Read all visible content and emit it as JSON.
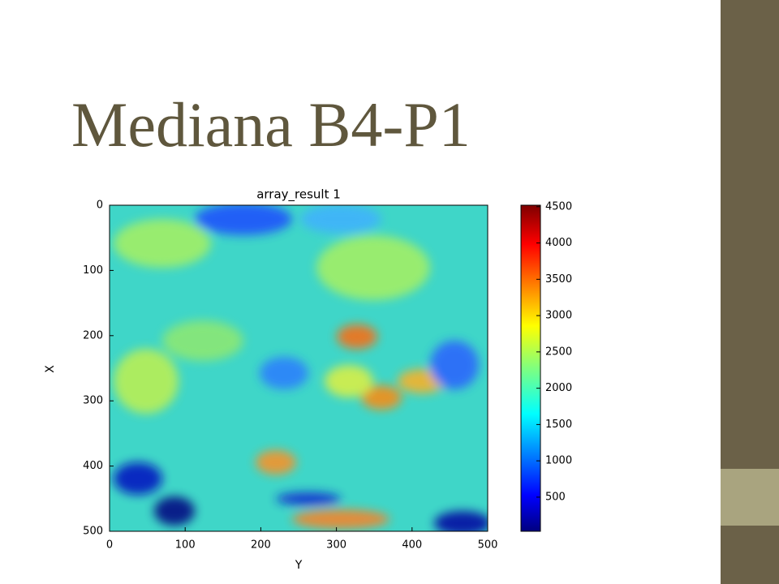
{
  "slide": {
    "title": "Mediana B4-P1"
  },
  "plot": {
    "title": "array_result 1",
    "xlabel": "Y",
    "ylabel": "X",
    "xlim": [
      0,
      500
    ],
    "xticks": [
      0,
      100,
      200,
      300,
      400,
      500
    ],
    "ylim": [
      0,
      500
    ],
    "yticks": [
      0,
      100,
      200,
      300,
      400,
      500
    ],
    "colorbar": {
      "lim": [
        30,
        4520
      ],
      "ticks": [
        500,
        1000,
        1500,
        2000,
        2500,
        3000,
        3500,
        4000,
        4500
      ]
    }
  }
}
